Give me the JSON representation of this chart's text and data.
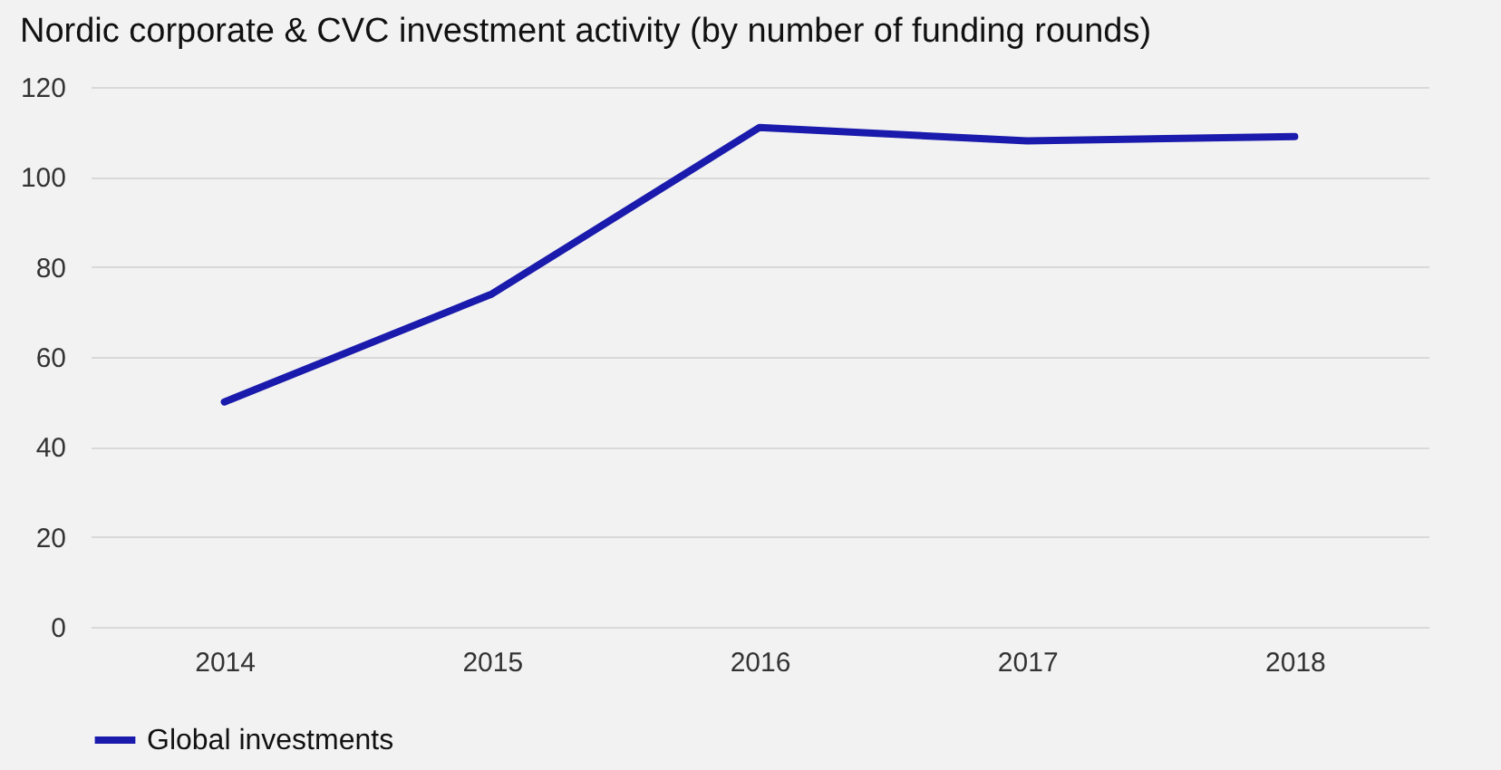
{
  "chart_data": {
    "type": "line",
    "title": "Nordic corporate & CVC investment activity (by number of funding rounds)",
    "categories": [
      "2014",
      "2015",
      "2016",
      "2017",
      "2018"
    ],
    "series": [
      {
        "name": "Global investments",
        "color": "#1a1aad",
        "values": [
          50,
          74,
          111,
          108,
          109
        ]
      }
    ],
    "ylim": [
      0,
      120
    ],
    "yticks": [
      0,
      20,
      40,
      60,
      80,
      100,
      120
    ],
    "grid": "y",
    "legend": "bottom",
    "marker": "none",
    "line_style": "solid"
  }
}
